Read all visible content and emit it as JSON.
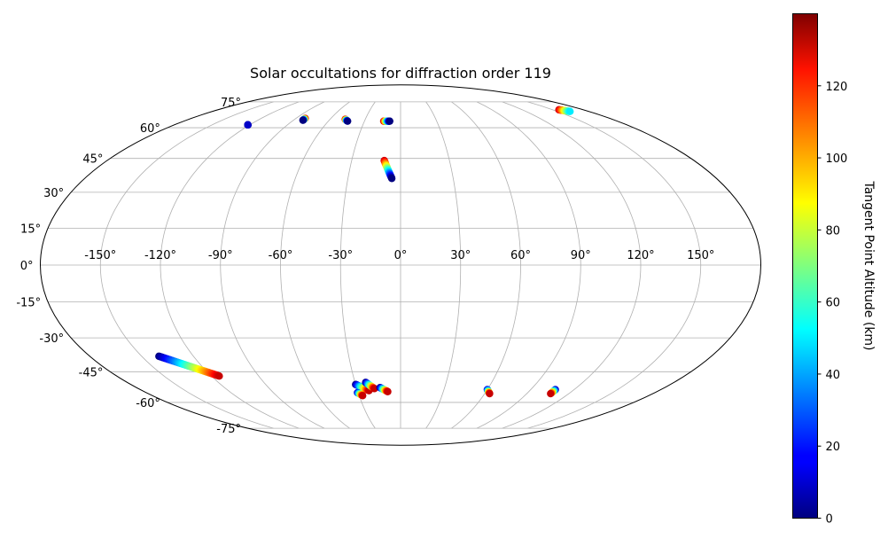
{
  "chart_data": {
    "type": "scatter",
    "projection": "mollweide",
    "title": "Solar occultations for diffraction order 119",
    "xlabel": "",
    "ylabel": "",
    "xlim": [
      -180,
      180
    ],
    "ylim": [
      -90,
      90
    ],
    "x_ticks": [
      "-150°",
      "-120°",
      "-90°",
      "-60°",
      "-30°",
      "0°",
      "30°",
      "60°",
      "90°",
      "120°",
      "150°"
    ],
    "y_ticks": [
      "75°",
      "60°",
      "45°",
      "30°",
      "15°",
      "0°",
      "-15°",
      "-30°",
      "-45°",
      "-60°",
      "-75°"
    ],
    "grid": true,
    "colormap": "jet",
    "colorbar": {
      "label": "Tangent Point Altitude (km)",
      "range": [
        0,
        140
      ],
      "ticks": [
        "0",
        "20",
        "40",
        "60",
        "80",
        "100",
        "120"
      ]
    },
    "series": [
      {
        "lon_start": -121.5,
        "lat_start": 61.5,
        "lon_end": -121.5,
        "lat_end": 61.5,
        "alt_start": 0,
        "alt_end": 10
      },
      {
        "lon_start": -82,
        "lat_start": 65,
        "lon_end": -82,
        "lat_end": 64,
        "alt_start": 130,
        "alt_end": 0
      },
      {
        "lon_start": -47,
        "lat_start": 64.5,
        "lon_end": -44,
        "lat_end": 63.5,
        "alt_start": 130,
        "alt_end": 0
      },
      {
        "lon_start": -14,
        "lat_start": 63.5,
        "lon_end": -9,
        "lat_end": 63.5,
        "alt_start": 130,
        "alt_end": 0
      },
      {
        "lon_start": -10,
        "lat_start": 44,
        "lon_end": -5,
        "lat_end": 36,
        "alt_start": 130,
        "alt_end": 0
      },
      {
        "lon_start": 156,
        "lat_start": 70,
        "lon_end": 162,
        "lat_end": 69,
        "alt_start": 130,
        "alt_end": 50
      },
      {
        "lon_start": -140,
        "lat_start": -38,
        "lon_end": -115,
        "lat_end": -47,
        "alt_start": 0,
        "alt_end": 130
      },
      {
        "lon_start": -30,
        "lat_start": -51,
        "lon_end": -22,
        "lat_end": -54,
        "alt_start": 0,
        "alt_end": 130
      },
      {
        "lon_start": -23,
        "lat_start": -50,
        "lon_end": -18,
        "lat_end": -53,
        "alt_start": 0,
        "alt_end": 130
      },
      {
        "lon_start": -14,
        "lat_start": -52.5,
        "lon_end": -9,
        "lat_end": -54.5,
        "alt_start": 0,
        "alt_end": 130
      },
      {
        "lon_start": -30.5,
        "lat_start": -55,
        "lon_end": -27.5,
        "lat_end": -56.5,
        "alt_start": 10,
        "alt_end": 130
      },
      {
        "lon_start": 60,
        "lat_start": -53.5,
        "lon_end": 63.5,
        "lat_end": -55.5,
        "alt_start": 10,
        "alt_end": 130
      },
      {
        "lon_start": 107,
        "lat_start": -53.5,
        "lon_end": 107,
        "lat_end": -55.5,
        "alt_start": 10,
        "alt_end": 130
      }
    ]
  }
}
